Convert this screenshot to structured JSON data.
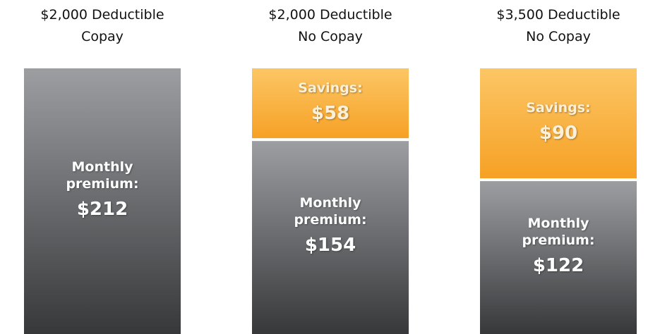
{
  "chart_data": {
    "type": "stacked-bar",
    "categories": [
      "$2,000 Deductible\nCopay",
      "$2,000 Deductible\nNo Copay",
      "$3,500 Deductible\nNo Copay"
    ],
    "series": [
      {
        "name": "Monthly premium:",
        "color": "#5f6063",
        "values": [
          212,
          154,
          122
        ],
        "value_labels": [
          "$212",
          "$154",
          "$122"
        ]
      },
      {
        "name": "Savings:",
        "color": "#f9b240",
        "values": [
          null,
          58,
          90
        ],
        "value_labels": [
          null,
          "$58",
          "$90"
        ]
      }
    ]
  }
}
